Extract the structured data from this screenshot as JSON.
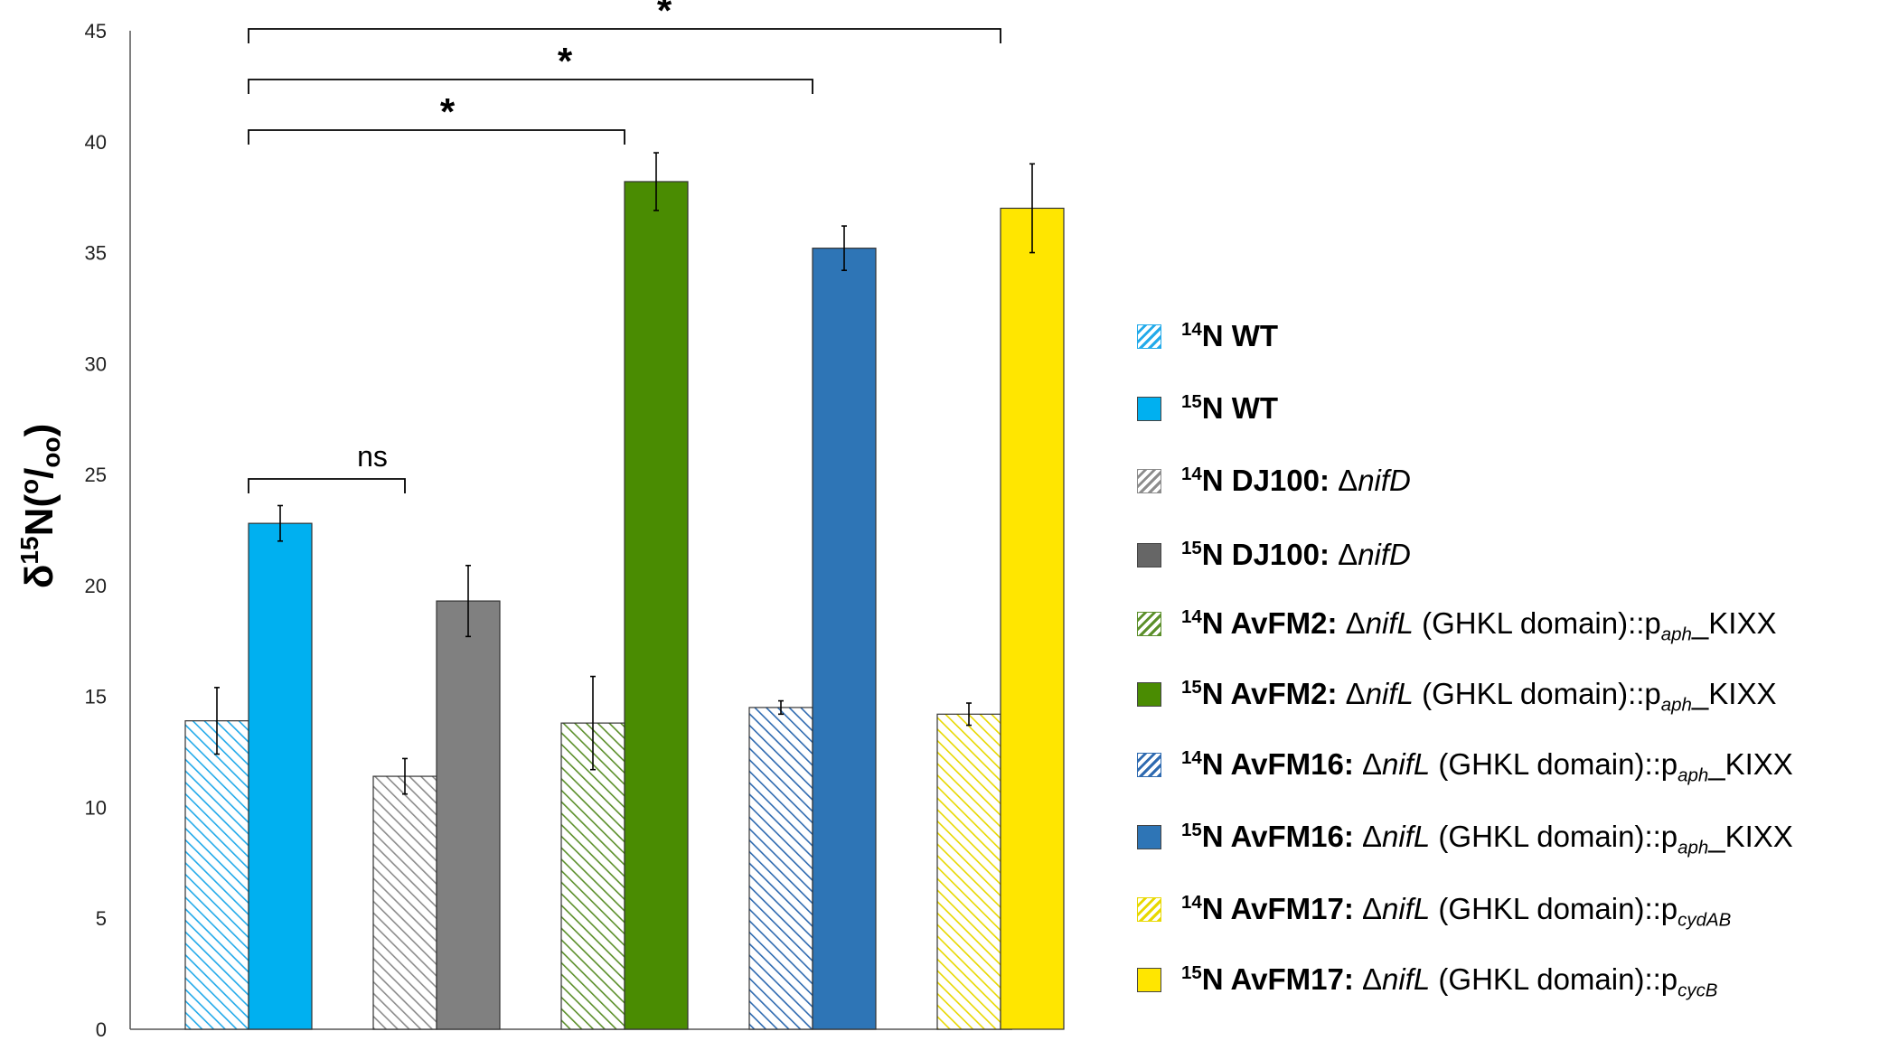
{
  "chart_data": {
    "type": "bar",
    "title": "",
    "xlabel": "",
    "ylabel": "δ15N(o/oo)",
    "ylim": [
      0,
      45
    ],
    "yticks": [
      0,
      5,
      10,
      15,
      20,
      25,
      30,
      35,
      40,
      45
    ],
    "grid": false,
    "legend_position": "right",
    "groups": [
      {
        "bars": [
          {
            "series": "14N WT",
            "value": 13.9,
            "error": 1.5,
            "pattern": "hatch",
            "color": "#22aaea"
          },
          {
            "series": "15N WT",
            "value": 22.8,
            "error": 0.8,
            "pattern": "solid",
            "color": "#00b0f0"
          }
        ]
      },
      {
        "bars": [
          {
            "series": "14N DJ100: ΔnifD",
            "value": 11.4,
            "error": 0.8,
            "pattern": "hatch",
            "color": "#8c8c8c"
          },
          {
            "series": "15N DJ100: ΔnifD",
            "value": 19.3,
            "error": 1.6,
            "pattern": "solid",
            "color": "#808080"
          }
        ]
      },
      {
        "bars": [
          {
            "series": "14N AvFM2: ΔnifL (GHKL domain)::paph_KIXX",
            "value": 13.8,
            "error": 2.1,
            "pattern": "hatch",
            "color": "#5b8f2a"
          },
          {
            "series": "15N AvFM2: ΔnifL (GHKL domain)::paph_KIXX",
            "value": 38.2,
            "error": 1.3,
            "pattern": "solid",
            "color": "#4a8c02"
          }
        ]
      },
      {
        "bars": [
          {
            "series": "14N AvFM16: ΔnifL (GHKL domain)::paph_KIXX",
            "value": 14.5,
            "error": 0.3,
            "pattern": "hatch",
            "color": "#2e6ab0"
          },
          {
            "series": "15N AvFM16: ΔnifL (GHKL domain)::paph_KIXX",
            "value": 35.2,
            "error": 1.0,
            "pattern": "solid",
            "color": "#2e75b6"
          }
        ]
      },
      {
        "bars": [
          {
            "series": "14N AvFM17: ΔnifL (GHKL domain)::pcydAB",
            "value": 14.2,
            "error": 0.5,
            "pattern": "hatch",
            "color": "#e8d800"
          },
          {
            "series": "15N AvFM17: ΔnifL (GHKL domain)::pcycB",
            "value": 37.0,
            "error": 2.0,
            "pattern": "solid",
            "color": "#ffe600"
          }
        ]
      }
    ],
    "significance": [
      {
        "from_group": 0,
        "to_group": 1,
        "label": "ns"
      },
      {
        "from_group": 0,
        "to_group": 2,
        "label": "*"
      },
      {
        "from_group": 0,
        "to_group": 3,
        "label": "*"
      },
      {
        "from_group": 0,
        "to_group": 4,
        "label": "*"
      }
    ]
  },
  "ylabel_parts": {
    "delta": "δ",
    "sup": "15",
    "n": "N(",
    "sup2": "o",
    "slash": "/",
    "sub": "oo",
    "close": ")"
  },
  "legend": [
    {
      "iso": "14",
      "strain": "N WT",
      "rest_pre": "",
      "gene": "",
      "rest_post": "",
      "sub": "",
      "tail": "",
      "pattern": "hatch",
      "color": "#22aaea"
    },
    {
      "iso": "15",
      "strain": "N WT",
      "rest_pre": "",
      "gene": "",
      "rest_post": "",
      "sub": "",
      "tail": "",
      "pattern": "solid",
      "color": "#00b0f0"
    },
    {
      "iso": "14",
      "strain": "N DJ100:",
      "rest_pre": " Δ",
      "gene": "nifD",
      "rest_post": "",
      "sub": "",
      "tail": "",
      "pattern": "hatch",
      "color": "#8c8c8c"
    },
    {
      "iso": "15",
      "strain": "N DJ100:",
      "rest_pre": " Δ",
      "gene": "nifD",
      "rest_post": "",
      "sub": "",
      "tail": "",
      "pattern": "solid",
      "color": "#666666"
    },
    {
      "iso": "14",
      "strain": "N AvFM2:",
      "rest_pre": " Δ",
      "gene": "nifL",
      "rest_post": " (GHKL domain)::p",
      "sub": "aph",
      "tail": "_KIXX",
      "pattern": "hatch",
      "color": "#5b8f2a"
    },
    {
      "iso": "15",
      "strain": "N AvFM2:",
      "rest_pre": " Δ",
      "gene": "nifL",
      "rest_post": " (GHKL domain)::p",
      "sub": "aph",
      "tail": "_KIXX",
      "pattern": "solid",
      "color": "#4a8c02"
    },
    {
      "iso": "14",
      "strain": "N AvFM16:",
      "rest_pre": " Δ",
      "gene": "nifL",
      "rest_post": " (GHKL domain)::p",
      "sub": "aph",
      "tail": "_KIXX",
      "pattern": "hatch",
      "color": "#2e6ab0"
    },
    {
      "iso": "15",
      "strain": "N AvFM16:",
      "rest_pre": " Δ",
      "gene": "nifL",
      "rest_post": " (GHKL domain)::p",
      "sub": "aph",
      "tail": "_KIXX",
      "pattern": "solid",
      "color": "#2e75b6"
    },
    {
      "iso": "14",
      "strain": "N AvFM17:",
      "rest_pre": " Δ",
      "gene": "nifL",
      "rest_post": " (GHKL domain)::p",
      "sub": "cydAB",
      "tail": "",
      "pattern": "hatch",
      "color": "#e8d800"
    },
    {
      "iso": "15",
      "strain": "N AvFM17:",
      "rest_pre": " Δ",
      "gene": "nifL",
      "rest_post": " (GHKL domain)::p",
      "sub": "cycB",
      "tail": "",
      "pattern": "solid",
      "color": "#ffe600"
    }
  ]
}
